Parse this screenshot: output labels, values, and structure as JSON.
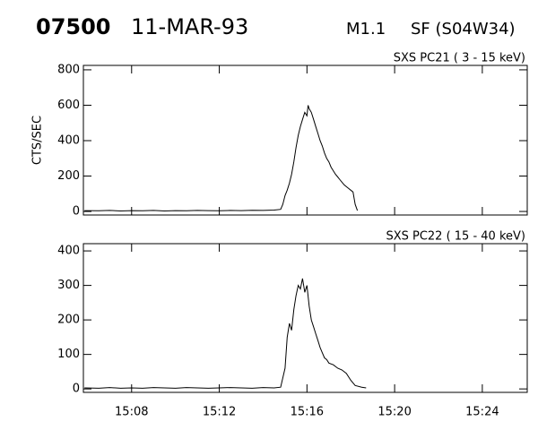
{
  "header": {
    "event": "07500",
    "date": "11-MAR-93",
    "goes_class": "M1.1",
    "flare": "SF (S04W34)"
  },
  "chart_data": [
    {
      "type": "line",
      "title": "SXS PC21  (  3 - 15 keV)",
      "ylabel": "CTS/SEC",
      "color": "#000000",
      "x": [
        5.85,
        6.5,
        7.0,
        7.5,
        8.0,
        8.5,
        9.0,
        9.5,
        10.0,
        10.5,
        11.0,
        11.5,
        12.0,
        12.5,
        13.0,
        13.5,
        14.0,
        14.5,
        14.8,
        14.9,
        15.0,
        15.1,
        15.2,
        15.3,
        15.4,
        15.5,
        15.6,
        15.7,
        15.8,
        15.9,
        16.0,
        16.05,
        16.1,
        16.2,
        16.3,
        16.4,
        16.5,
        16.6,
        16.7,
        16.8,
        16.9,
        17.0,
        17.1,
        17.2,
        17.3,
        17.4,
        17.5,
        17.6,
        17.7,
        17.8,
        17.9,
        18.0,
        18.1,
        18.2,
        18.3
      ],
      "values": [
        5,
        4,
        6,
        3,
        5,
        4,
        6,
        3,
        5,
        4,
        6,
        5,
        4,
        6,
        5,
        7,
        6,
        8,
        12,
        40,
        90,
        120,
        160,
        210,
        280,
        360,
        430,
        480,
        520,
        560,
        540,
        600,
        580,
        560,
        520,
        480,
        440,
        400,
        370,
        330,
        300,
        280,
        250,
        230,
        210,
        195,
        180,
        165,
        150,
        140,
        130,
        120,
        110,
        40,
        5
      ],
      "xlim": [
        5.8,
        26.05
      ],
      "xticks": [
        8,
        12,
        16,
        20,
        24
      ],
      "ylim": [
        -20,
        825
      ],
      "yticks": [
        0,
        200,
        400,
        600,
        800
      ]
    },
    {
      "type": "line",
      "title": "SXS PC22  ( 15 - 40 keV)",
      "color": "#000000",
      "x": [
        5.85,
        6.5,
        7.0,
        7.5,
        8.0,
        8.5,
        9.0,
        9.5,
        10.0,
        10.5,
        11.0,
        11.5,
        12.0,
        12.5,
        13.0,
        13.5,
        14.0,
        14.5,
        14.8,
        15.0,
        15.1,
        15.2,
        15.3,
        15.4,
        15.5,
        15.6,
        15.7,
        15.8,
        15.9,
        16.0,
        16.1,
        16.2,
        16.3,
        16.4,
        16.5,
        16.6,
        16.7,
        16.8,
        16.9,
        17.0,
        17.2,
        17.4,
        17.6,
        17.8,
        18.0,
        18.2,
        18.5,
        18.7
      ],
      "values": [
        3,
        2,
        4,
        2,
        3,
        2,
        4,
        3,
        2,
        4,
        3,
        2,
        3,
        4,
        3,
        2,
        4,
        3,
        5,
        60,
        150,
        190,
        170,
        230,
        270,
        300,
        290,
        320,
        280,
        300,
        240,
        200,
        180,
        160,
        140,
        120,
        105,
        90,
        85,
        75,
        70,
        60,
        55,
        45,
        25,
        10,
        5,
        3
      ],
      "xlim": [
        5.8,
        26.05
      ],
      "xticks": [
        {
          "value": 8,
          "label": "15:08"
        },
        {
          "value": 12,
          "label": "15:12"
        },
        {
          "value": 16,
          "label": "15:16"
        },
        {
          "value": 20,
          "label": "15:20"
        },
        {
          "value": 24,
          "label": "15:24"
        }
      ],
      "ylim": [
        -10,
        421
      ],
      "yticks": [
        0,
        100,
        200,
        300,
        400
      ]
    }
  ]
}
